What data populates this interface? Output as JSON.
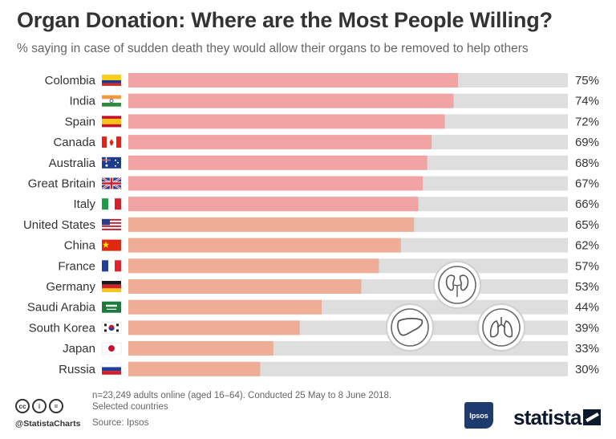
{
  "header": {
    "title": "Organ Donation: Where are the Most People Willing?",
    "subtitle": "% saying in case of sudden death they would allow their organs to be removed to help others"
  },
  "chart_data": {
    "type": "bar",
    "orientation": "horizontal",
    "title": "Organ Donation: Where are the Most People Willing?",
    "subtitle": "% saying in case of sudden death they would allow their organs to be removed to help others",
    "unit": "%",
    "xlim": [
      0,
      100
    ],
    "categories": [
      "Colombia",
      "India",
      "Spain",
      "Canada",
      "Australia",
      "Great Britain",
      "Italy",
      "United States",
      "China",
      "France",
      "Germany",
      "Saudi Arabia",
      "South Korea",
      "Japan",
      "Russia"
    ],
    "values": [
      75,
      74,
      72,
      69,
      68,
      67,
      66,
      65,
      62,
      57,
      53,
      44,
      39,
      33,
      30
    ],
    "value_labels": [
      "75%",
      "74%",
      "72%",
      "69%",
      "68%",
      "67%",
      "66%",
      "65%",
      "62%",
      "57%",
      "53%",
      "44%",
      "39%",
      "33%",
      "30%"
    ],
    "grid": false,
    "legend": "none"
  },
  "flags": [
    "colombia-flag-icon",
    "india-flag-icon",
    "spain-flag-icon",
    "canada-flag-icon",
    "australia-flag-icon",
    "great-britain-flag-icon",
    "italy-flag-icon",
    "united-states-flag-icon",
    "china-flag-icon",
    "france-flag-icon",
    "germany-flag-icon",
    "saudi-arabia-flag-icon",
    "south-korea-flag-icon",
    "japan-flag-icon",
    "russia-flag-icon"
  ],
  "decorations": [
    "kidneys-icon",
    "liver-icon",
    "lungs-icon"
  ],
  "colors": {
    "bar_high": "#f2a3a3",
    "bar_low": "#f0ad95",
    "track": "#dedede",
    "text": "#333333"
  },
  "footer": {
    "note_line1": "n=23,249 adults online (aged 16–64). Conducted 25 May to 8 June 2018.",
    "note_line2": "Selected countries",
    "source": "Source: Ipsos",
    "handle": "@StatistaCharts",
    "ipsos_logo": "Ipsos",
    "statista_logo": "statista",
    "cc_icons": [
      "cc",
      "i",
      "="
    ]
  }
}
